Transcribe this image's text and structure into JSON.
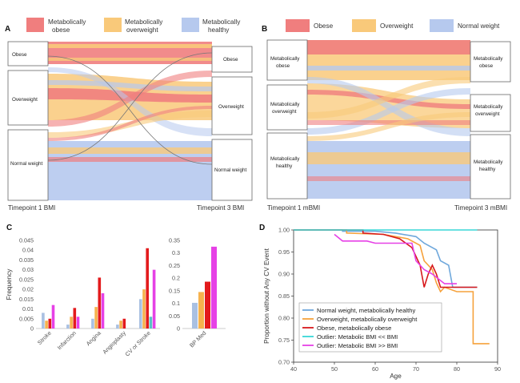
{
  "panels": {
    "A": {
      "label": "A",
      "legend": [
        {
          "label": "Metabolically obese",
          "lines": [
            "Metabolically",
            "obese"
          ],
          "color": "#f07e7e"
        },
        {
          "label": "Metabolically overweight",
          "lines": [
            "Metabolically",
            "overweight"
          ],
          "color": "#f9c97a"
        },
        {
          "label": "Metabolically healthy",
          "lines": [
            "Metabolically",
            "healthy"
          ],
          "color": "#b6c9ee"
        }
      ],
      "left_nodes": [
        "Obese",
        "Overweight",
        "Normal weight"
      ],
      "right_nodes": [
        "Obese",
        "Overweight",
        "Normal weight"
      ],
      "left_axis_label": "Timepoint 1 BMI",
      "right_axis_label": "Timepoint 3 BMI"
    },
    "B": {
      "label": "B",
      "legend": [
        {
          "label": "Obese",
          "color": "#f07e7e"
        },
        {
          "label": "Overweight",
          "color": "#f9c97a"
        },
        {
          "label": "Normal weight",
          "color": "#b6c9ee"
        }
      ],
      "left_nodes": [
        {
          "label": "Metabolically obese",
          "lines": [
            "Metabolically",
            "obese"
          ]
        },
        {
          "label": "Metabolically overweight",
          "lines": [
            "Metabolically",
            "overweight"
          ]
        },
        {
          "label": "Metabolically healthy",
          "lines": [
            "Metabolically",
            "healthy"
          ]
        }
      ],
      "right_nodes": [
        {
          "label": "Metabolically obese",
          "lines": [
            "Metabolically",
            "obese"
          ]
        },
        {
          "label": "Metabolically overweight",
          "lines": [
            "Metabolically",
            "overweight"
          ]
        },
        {
          "label": "Metabolically healthy",
          "lines": [
            "Metabolically",
            "healthy"
          ]
        }
      ],
      "left_axis_label": "Timepoint 1 mBMI",
      "right_axis_label": "Timepoint 3 mBMI"
    },
    "C": {
      "label": "C"
    },
    "D": {
      "label": "D"
    }
  },
  "chart_data": [
    {
      "id": "C-left",
      "type": "bar",
      "ylabel": "Frequency",
      "ylim": [
        0,
        0.045
      ],
      "yticks": [
        "0",
        "0.005",
        "0.01",
        "0.015",
        "0.02",
        "0.025",
        "0.03",
        "0.035",
        "0.04",
        "0.045"
      ],
      "categories": [
        "Stroke",
        "Infarction",
        "Angina",
        "Angioplasty",
        "CV or Stroke"
      ],
      "series_colors": [
        "#a9c0e2",
        "#f6b24e",
        "#e31a1c",
        "#e641e6"
      ],
      "values_by_category": [
        [
          0.008,
          0.004,
          0.005,
          0.012
        ],
        [
          0.002,
          0.006,
          0.0105,
          0.006
        ],
        [
          0.005,
          0.011,
          0.026,
          0.018
        ],
        [
          0.002,
          0.004,
          0.005,
          0.0
        ],
        [
          0.015,
          0.02,
          0.041,
          0.03
        ]
      ],
      "extra_bars": [
        {
          "category": "CV or Stroke",
          "value": 0.006,
          "color": "#5bc1c6"
        }
      ]
    },
    {
      "id": "C-right",
      "type": "bar",
      "ylim": [
        0,
        0.35
      ],
      "yticks": [
        "0",
        "0.05",
        "0.1",
        "0.15",
        "0.2",
        "0.25",
        "0.3",
        "0.35"
      ],
      "categories": [
        "BP Med"
      ],
      "series_colors": [
        "#a9c0e2",
        "#f6b24e",
        "#e31a1c",
        "#e641e6"
      ],
      "values_by_category": [
        [
          0.102,
          0.145,
          0.186,
          0.325
        ]
      ]
    },
    {
      "id": "D",
      "type": "line",
      "xlabel": "Age",
      "ylabel": "Proportion without Any CV Event",
      "xlim": [
        40,
        90
      ],
      "ylim": [
        0.7,
        1.0
      ],
      "xticks": [
        "40",
        "50",
        "60",
        "70",
        "80",
        "90"
      ],
      "yticks": [
        "0.70",
        "0.75",
        "0.80",
        "0.85",
        "0.90",
        "0.95",
        "1.00"
      ],
      "series": [
        {
          "name": "Normal weight, metabolically healthy",
          "color": "#6fa8dc",
          "points": [
            [
              40,
              1.0
            ],
            [
              52,
              1.0
            ],
            [
              52,
              0.997
            ],
            [
              60,
              0.997
            ],
            [
              65,
              0.993
            ],
            [
              70,
              0.985
            ],
            [
              72,
              0.97
            ],
            [
              75,
              0.955
            ],
            [
              76,
              0.93
            ],
            [
              78,
              0.92
            ],
            [
              79,
              0.87
            ],
            [
              85,
              0.87
            ]
          ]
        },
        {
          "name": "Overweight, metabolically overweight",
          "color": "#f6a23c",
          "points": [
            [
              40,
              1.0
            ],
            [
              53,
              1.0
            ],
            [
              53,
              0.993
            ],
            [
              62,
              0.99
            ],
            [
              68,
              0.98
            ],
            [
              71,
              0.965
            ],
            [
              72,
              0.93
            ],
            [
              74,
              0.91
            ],
            [
              75,
              0.88
            ],
            [
              76,
              0.86
            ],
            [
              77,
              0.87
            ],
            [
              80,
              0.86
            ],
            [
              84,
              0.86
            ],
            [
              84,
              0.742
            ],
            [
              88,
              0.742
            ]
          ]
        },
        {
          "name": "Obese, metabolically obese",
          "color": "#d7191c",
          "points": [
            [
              40,
              1.0
            ],
            [
              57,
              1.0
            ],
            [
              57,
              0.993
            ],
            [
              62,
              0.99
            ],
            [
              66,
              0.98
            ],
            [
              69,
              0.96
            ],
            [
              71,
              0.92
            ],
            [
              72,
              0.87
            ],
            [
              73,
              0.9
            ],
            [
              74,
              0.92
            ],
            [
              75,
              0.9
            ],
            [
              76,
              0.87
            ],
            [
              85,
              0.87
            ]
          ]
        },
        {
          "name": "Outlier: Metabolic BMI << BMI",
          "color": "#38d7d7",
          "points": [
            [
              40,
              1.0
            ],
            [
              85,
              1.0
            ]
          ]
        },
        {
          "name": "Outlier: Metabolic BMI >> BMI",
          "color": "#e641e6",
          "points": [
            [
              50,
              0.99
            ],
            [
              52,
              0.975
            ],
            [
              58,
              0.975
            ],
            [
              60,
              0.97
            ],
            [
              69,
              0.97
            ],
            [
              70,
              0.93
            ],
            [
              72,
              0.91
            ],
            [
              74,
              0.9
            ],
            [
              77,
              0.878
            ],
            [
              80,
              0.878
            ]
          ]
        }
      ]
    }
  ]
}
